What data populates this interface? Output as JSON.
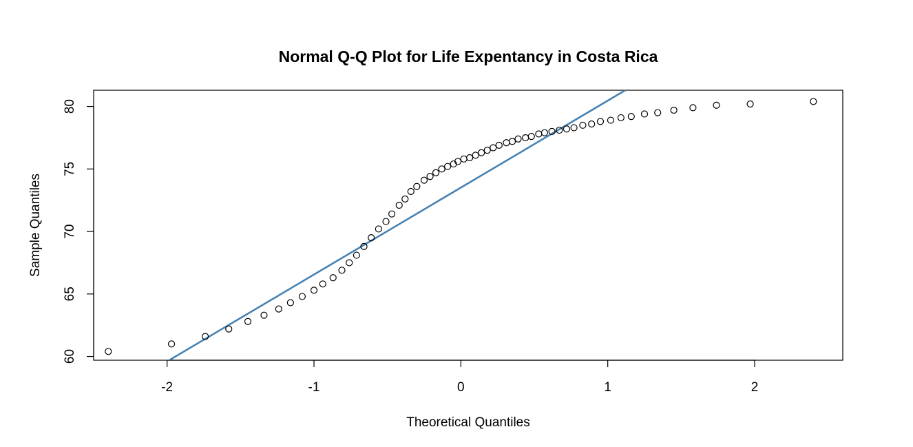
{
  "chart_data": {
    "type": "scatter",
    "title": "Normal Q-Q Plot for Life Expentancy in Costa Rica",
    "xlabel": "Theoretical Quantiles",
    "ylabel": "Sample Quantiles",
    "xlim": [
      -2.5,
      2.6
    ],
    "ylim": [
      59.7,
      81.3
    ],
    "xticks": [
      -2,
      -1,
      0,
      1,
      2
    ],
    "xtick_labels": [
      "-2",
      "-1",
      "0",
      "1",
      "2"
    ],
    "yticks": [
      60,
      65,
      70,
      75,
      80
    ],
    "ytick_labels": [
      "60",
      "65",
      "70",
      "75",
      "80"
    ],
    "grid": false,
    "point_color": "#000000",
    "line_color": "#4682B4",
    "reference_line": {
      "x": [
        -2.0,
        1.12
      ],
      "y": [
        59.6,
        81.3
      ]
    },
    "series": [
      {
        "x": [
          -2.4,
          -1.97,
          -1.74,
          -1.58,
          -1.45,
          -1.34,
          -1.24,
          -1.16,
          -1.08,
          -1.0,
          -0.94,
          -0.87,
          -0.81,
          -0.76,
          -0.71,
          -0.66,
          -0.61,
          -0.56,
          -0.51,
          -0.47,
          -0.42,
          -0.38,
          -0.34,
          -0.3,
          -0.25,
          -0.21,
          -0.17,
          -0.13,
          -0.09,
          -0.05,
          -0.02,
          0.02,
          0.06,
          0.1,
          0.14,
          0.18,
          0.22,
          0.26,
          0.31,
          0.35,
          0.39,
          0.44,
          0.48,
          0.53,
          0.57,
          0.62,
          0.67,
          0.72,
          0.77,
          0.83,
          0.89,
          0.95,
          1.02,
          1.09,
          1.16,
          1.25,
          1.34,
          1.45,
          1.58,
          1.74,
          1.97,
          2.4
        ],
        "y": [
          60.4,
          61.0,
          61.6,
          62.2,
          62.8,
          63.3,
          63.8,
          64.3,
          64.8,
          65.3,
          65.8,
          66.3,
          66.9,
          67.5,
          68.1,
          68.8,
          69.5,
          70.2,
          70.8,
          71.4,
          72.1,
          72.6,
          73.2,
          73.6,
          74.1,
          74.4,
          74.7,
          75.0,
          75.2,
          75.4,
          75.6,
          75.8,
          75.9,
          76.1,
          76.3,
          76.5,
          76.7,
          76.9,
          77.1,
          77.2,
          77.4,
          77.5,
          77.6,
          77.8,
          77.9,
          78.0,
          78.1,
          78.2,
          78.3,
          78.5,
          78.6,
          78.8,
          78.9,
          79.1,
          79.2,
          79.4,
          79.5,
          79.7,
          79.9,
          80.1,
          80.2,
          80.4
        ]
      }
    ]
  }
}
